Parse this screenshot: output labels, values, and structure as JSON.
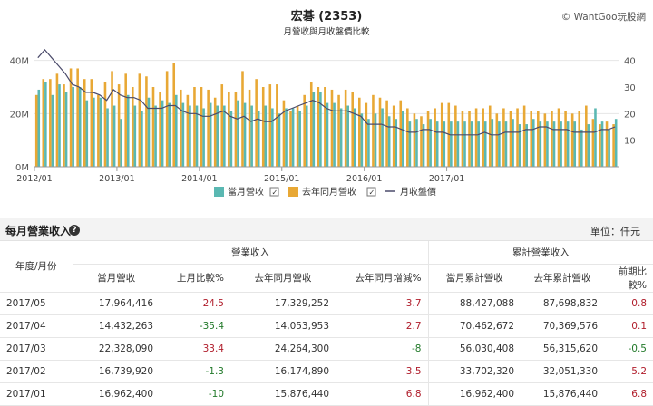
{
  "chart": {
    "title": "宏碁 (2353)",
    "subtitle": "月營收與月收盤價比較",
    "credit": "© WantGoo玩股網",
    "legend": {
      "current": "當月營收",
      "last_year": "去年同月營收",
      "price": "月收盤價",
      "check": "✓"
    },
    "colors": {
      "current": "#5ab8b2",
      "last_year": "#e8a835",
      "price": "#4a4a6a"
    }
  },
  "chart_data": {
    "type": "bar",
    "x_start": "2012/01",
    "x_tick_labels": [
      "2012/01",
      "2013/01",
      "2014/01",
      "2015/01",
      "2016/01",
      "2017/01"
    ],
    "left_axis": {
      "ticks": [
        "0M",
        "20M",
        "40M"
      ],
      "range": [
        0,
        45
      ]
    },
    "right_axis": {
      "ticks": [
        "10",
        "20",
        "30",
        "40"
      ],
      "range": [
        0,
        45
      ]
    },
    "series": [
      {
        "name": "當月營收",
        "values": [
          29,
          32,
          27,
          31,
          28,
          30,
          30,
          25,
          26,
          26,
          22,
          23,
          18,
          27,
          23,
          21,
          26,
          23,
          25,
          24,
          27,
          24,
          23,
          23,
          22,
          24,
          23,
          23,
          21,
          25,
          24,
          23,
          21,
          23,
          22,
          20,
          22,
          22,
          21,
          23,
          28,
          28,
          24,
          24,
          22,
          23,
          22,
          20,
          18,
          20,
          22,
          19,
          18,
          21,
          17,
          18,
          16,
          18,
          17,
          17,
          17,
          17,
          17,
          17,
          17,
          17,
          18,
          17,
          17,
          18,
          16,
          16,
          18,
          17,
          17,
          17,
          17,
          17,
          17,
          14,
          16,
          22,
          17,
          14,
          18
        ]
      },
      {
        "name": "去年同月營收",
        "values": [
          27,
          33,
          33,
          35,
          31,
          37,
          37,
          33,
          33,
          27,
          32,
          36,
          31,
          35,
          30,
          35,
          34,
          30,
          28,
          36,
          39,
          29,
          27,
          30,
          30,
          29,
          26,
          31,
          28,
          28,
          36,
          29,
          33,
          30,
          31,
          31,
          25,
          21,
          23,
          27,
          32,
          30,
          30,
          29,
          27,
          29,
          28,
          26,
          24,
          27,
          26,
          25,
          23,
          25,
          22,
          20,
          19,
          21,
          22,
          24,
          24,
          23,
          21,
          21,
          22,
          22,
          23,
          20,
          22,
          21,
          22,
          23,
          21,
          21,
          20,
          21,
          22,
          21,
          20,
          21,
          23,
          18,
          16,
          17,
          16
        ]
      },
      {
        "name": "月收盤價",
        "values": [
          41,
          44,
          41,
          38,
          35,
          31,
          30,
          28,
          28,
          27,
          25,
          29,
          27,
          26,
          26,
          25,
          22,
          22,
          22,
          23,
          23,
          21,
          20,
          20,
          19,
          19,
          20,
          21,
          19,
          18,
          19,
          17,
          18,
          17,
          17,
          19,
          21,
          22,
          23,
          24,
          25,
          24,
          22,
          21,
          21,
          21,
          20,
          19,
          16,
          16,
          16,
          15,
          15,
          14,
          13,
          13,
          14,
          14,
          13,
          13,
          12,
          12,
          12,
          12,
          12,
          13,
          12,
          12,
          13,
          13,
          13,
          14,
          14,
          15,
          15,
          14,
          14,
          14,
          13,
          13,
          13,
          13,
          14,
          14,
          15
        ]
      }
    ]
  },
  "section": {
    "title": "每月營業收入",
    "help": "?",
    "unit": "單位：仟元"
  },
  "table": {
    "date_header": "年度/月份",
    "group_revenue": "營業收入",
    "group_cumulative": "累計營業收入",
    "columns": [
      "當月營收",
      "上月比較%",
      "去年同月營收",
      "去年同月增減%",
      "當月累計營收",
      "去年累計營收",
      "前期比較%"
    ],
    "rows": [
      [
        "2017/05",
        "17,964,416",
        "24.5",
        "17,329,252",
        "3.7",
        "88,427,088",
        "87,698,832",
        "0.8"
      ],
      [
        "2017/04",
        "14,432,263",
        "-35.4",
        "14,053,953",
        "2.7",
        "70,462,672",
        "70,369,576",
        "0.1"
      ],
      [
        "2017/03",
        "22,328,090",
        "33.4",
        "24,264,300",
        "-8",
        "56,030,408",
        "56,315,620",
        "-0.5"
      ],
      [
        "2017/02",
        "16,739,920",
        "-1.3",
        "16,174,890",
        "3.5",
        "33,702,320",
        "32,051,330",
        "5.2"
      ],
      [
        "2017/01",
        "16,962,400",
        "-10",
        "15,876,440",
        "6.8",
        "16,962,400",
        "15,876,440",
        "6.8"
      ]
    ]
  }
}
